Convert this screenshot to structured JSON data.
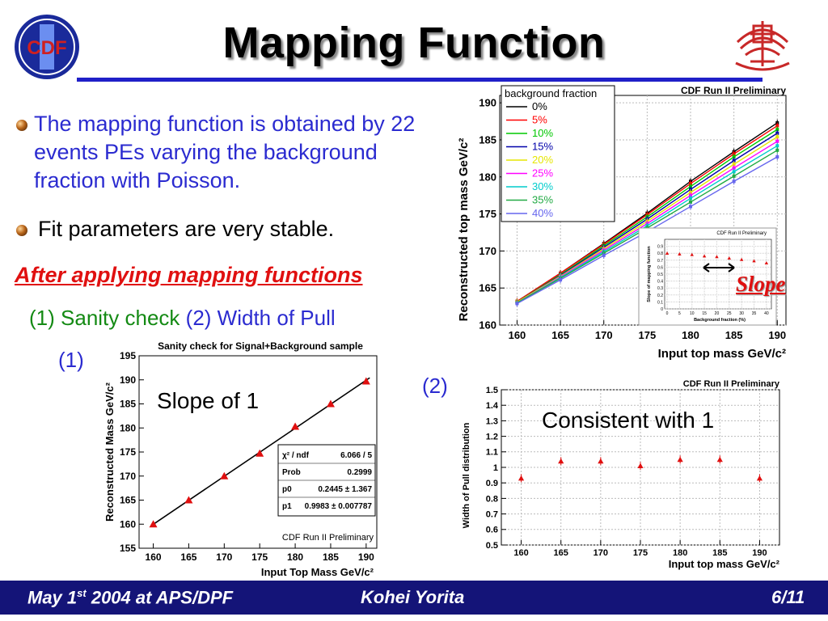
{
  "slide": {
    "title": "Mapping Function",
    "bullets": [
      "The mapping function is obtained by 22 events PEs varying the background fraction with Poisson.",
      "Fit parameters are very stable."
    ],
    "subheading": "After applying mapping functions",
    "sanity_line": {
      "n1": "(1)",
      "t1": "Sanity check",
      "n2": "(2)",
      "t2": "Width of Pull"
    },
    "label_1": "(1)",
    "label_2": "(2)",
    "slope_tag": "Slope",
    "slope_of_1": "Slope of 1",
    "consistent": "Consistent with 1",
    "logo_left_text": "CDF",
    "footer": {
      "left": "May 1",
      "left_sup": "st",
      "left_rest": " 2004 at APS/DPF",
      "center": "Kohei Yorita",
      "right": "6/11"
    },
    "colors": {
      "title_rule": "#2020c8",
      "bullet_blue": "#2b2bd0",
      "heading_red": "#e01010",
      "footer_bg": "#141478",
      "marker_red": "#e01010"
    }
  },
  "chart_data": [
    {
      "type": "line",
      "id": "mapping",
      "header": "CDF Run II Preliminary",
      "xlabel": "Input top mass GeV/c²",
      "ylabel": "Reconstructed top mass GeV/c²",
      "xlim": [
        158,
        191
      ],
      "ylim": [
        160,
        191
      ],
      "xticks": [
        "160",
        "165",
        "170",
        "175",
        "180",
        "185",
        "190"
      ],
      "yticks": [
        "160",
        "165",
        "170",
        "175",
        "180",
        "185",
        "190"
      ],
      "legend_title": "background fraction",
      "x": [
        160,
        165,
        170,
        175,
        180,
        185,
        190
      ],
      "series": [
        {
          "name": "0%",
          "color": "#000000",
          "values": [
            163.2,
            167.0,
            171.0,
            175.1,
            179.4,
            183.4,
            187.3
          ]
        },
        {
          "name": "5%",
          "color": "#ff0000",
          "values": [
            163.2,
            167.0,
            170.9,
            174.9,
            179.1,
            183.1,
            186.9
          ]
        },
        {
          "name": "10%",
          "color": "#00c800",
          "values": [
            163.1,
            166.8,
            170.7,
            174.6,
            178.7,
            182.7,
            186.4
          ]
        },
        {
          "name": "15%",
          "color": "#0000aa",
          "values": [
            163.1,
            166.7,
            170.5,
            174.3,
            178.3,
            182.2,
            185.9
          ]
        },
        {
          "name": "20%",
          "color": "#e6e600",
          "values": [
            163.1,
            166.6,
            170.3,
            174.0,
            177.9,
            181.7,
            185.4
          ]
        },
        {
          "name": "25%",
          "color": "#ff00ff",
          "values": [
            163.0,
            166.5,
            170.1,
            173.7,
            177.5,
            181.2,
            184.8
          ]
        },
        {
          "name": "30%",
          "color": "#00cccc",
          "values": [
            163.0,
            166.4,
            169.9,
            173.4,
            177.1,
            180.7,
            184.2
          ]
        },
        {
          "name": "35%",
          "color": "#22aa44",
          "values": [
            163.0,
            166.3,
            169.7,
            173.1,
            176.6,
            180.1,
            183.6
          ]
        },
        {
          "name": "40%",
          "color": "#6666ee",
          "values": [
            162.9,
            166.1,
            169.4,
            172.6,
            176.0,
            179.4,
            182.7
          ]
        }
      ]
    },
    {
      "type": "scatter",
      "id": "slope_inset",
      "header": "CDF Run II Preliminary",
      "xlabel": "Background fraction (%)",
      "ylabel": "Slope of mapping function",
      "xlim": [
        -1,
        42
      ],
      "ylim": [
        0,
        1
      ],
      "xticks": [
        "0",
        "5",
        "10",
        "15",
        "20",
        "25",
        "30",
        "35",
        "40"
      ],
      "yticks": [
        "0",
        "0.1",
        "0.2",
        "0.3",
        "0.4",
        "0.5",
        "0.6",
        "0.7",
        "0.8",
        "0.9"
      ],
      "x": [
        0,
        5,
        10,
        15,
        20,
        25,
        30,
        35,
        40
      ],
      "values": [
        0.8,
        0.79,
        0.78,
        0.76,
        0.75,
        0.73,
        0.71,
        0.69,
        0.66
      ]
    },
    {
      "type": "scatter",
      "id": "sanity",
      "title": "Sanity check for Signal+Background sample",
      "xlabel": "Input Top Mass GeV/c²",
      "ylabel": "Reconstructed Mass GeV/c²",
      "xlim": [
        158,
        191.5
      ],
      "ylim": [
        155,
        195
      ],
      "xticks": [
        "160",
        "165",
        "170",
        "175",
        "180",
        "185",
        "190"
      ],
      "yticks": [
        "155",
        "160",
        "165",
        "170",
        "175",
        "180",
        "185",
        "190",
        "195"
      ],
      "x": [
        160,
        165,
        170,
        175,
        180,
        185,
        190
      ],
      "values": [
        160.0,
        165.0,
        170.0,
        174.7,
        180.3,
        185.0,
        189.7
      ],
      "fit": {
        "p0": 0.2445,
        "p1": 0.9983
      },
      "stats": [
        {
          "k": "χ² / ndf",
          "v": "6.066 / 5"
        },
        {
          "k": "Prob",
          "v": "0.2999"
        },
        {
          "k": "p0",
          "v": "0.2445 ± 1.367"
        },
        {
          "k": "p1",
          "v": "0.9983 ± 0.007787"
        }
      ],
      "footnote": "CDF Run II Preliminary"
    },
    {
      "type": "scatter",
      "id": "pull",
      "header": "CDF Run II Preliminary",
      "xlabel": "Input top mass GeV/c²",
      "ylabel": "Width of Pull distribution",
      "xlim": [
        157.5,
        192.5
      ],
      "ylim": [
        0.5,
        1.5
      ],
      "xticks": [
        "160",
        "165",
        "170",
        "175",
        "180",
        "185",
        "190"
      ],
      "yticks": [
        "0.5",
        "0.6",
        "0.7",
        "0.8",
        "0.9",
        "1",
        "1.1",
        "1.2",
        "1.3",
        "1.4",
        "1.5"
      ],
      "x": [
        160,
        165,
        170,
        175,
        180,
        185,
        190
      ],
      "values": [
        0.93,
        1.04,
        1.04,
        1.01,
        1.05,
        1.05,
        0.93
      ]
    }
  ]
}
